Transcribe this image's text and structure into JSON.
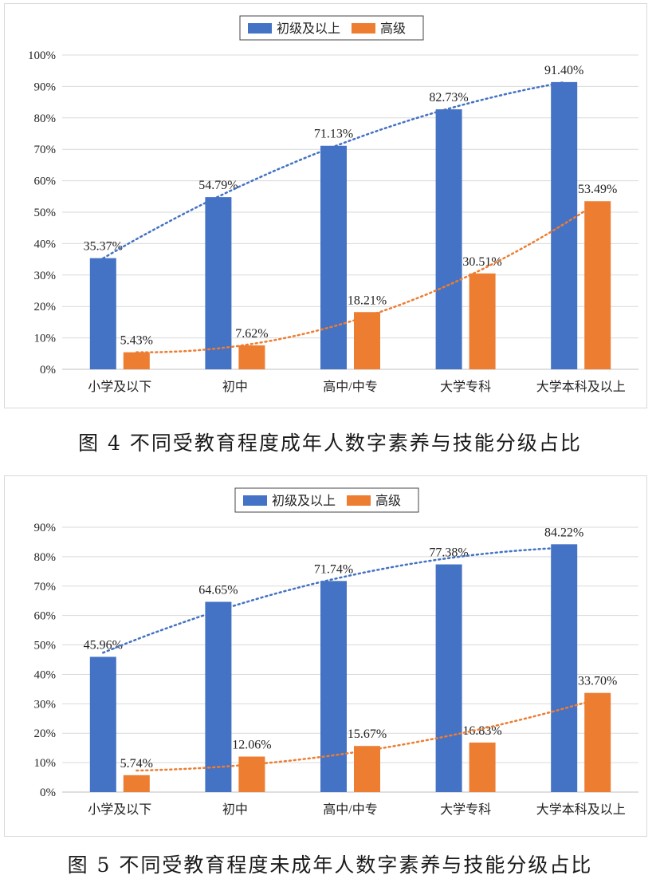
{
  "chart_data": [
    {
      "type": "bar",
      "title": "",
      "xlabel": "",
      "ylabel": "",
      "ylim": [
        0,
        100
      ],
      "yticks": [
        "0%",
        "10%",
        "20%",
        "30%",
        "40%",
        "50%",
        "60%",
        "70%",
        "80%",
        "90%",
        "100%"
      ],
      "categories": [
        "小学及以下",
        "初中",
        "高中/中专",
        "大学专科",
        "大学本科及以上"
      ],
      "series": [
        {
          "name": "初级及以上",
          "color": "#4472C4",
          "values": [
            35.37,
            54.79,
            71.13,
            82.73,
            91.4
          ],
          "labels": [
            "35.37%",
            "54.79%",
            "71.13%",
            "82.73%",
            "91.40%"
          ]
        },
        {
          "name": "高级",
          "color": "#ED7D31",
          "values": [
            5.43,
            7.62,
            18.21,
            30.51,
            53.49
          ],
          "labels": [
            "5.43%",
            "7.62%",
            "18.21%",
            "30.51%",
            "53.49%"
          ]
        }
      ],
      "trendlines": "dotted, one per series",
      "grid": true,
      "legend": "top-center"
    },
    {
      "type": "bar",
      "title": "",
      "xlabel": "",
      "ylabel": "",
      "ylim": [
        0,
        90
      ],
      "yticks": [
        "0%",
        "10%",
        "20%",
        "30%",
        "40%",
        "50%",
        "60%",
        "70%",
        "80%",
        "90%"
      ],
      "categories": [
        "小学及以下",
        "初中",
        "高中/中专",
        "大学专科",
        "大学本科及以上"
      ],
      "series": [
        {
          "name": "初级及以上",
          "color": "#4472C4",
          "values": [
            45.96,
            64.65,
            71.74,
            77.38,
            84.22
          ],
          "labels": [
            "45.96%",
            "64.65%",
            "71.74%",
            "77.38%",
            "84.22%"
          ]
        },
        {
          "name": "高级",
          "color": "#ED7D31",
          "values": [
            5.74,
            12.06,
            15.67,
            16.83,
            33.7
          ],
          "labels": [
            "5.74%",
            "12.06%",
            "15.67%",
            "16.83%",
            "33.70%"
          ]
        }
      ],
      "trendlines": "dotted, one per series",
      "grid": true,
      "legend": "top-center"
    }
  ],
  "captions": [
    "图 4  不同受教育程度成年人数字素养与技能分级占比",
    "图 5  不同受教育程度未成年人数字素养与技能分级占比"
  ]
}
